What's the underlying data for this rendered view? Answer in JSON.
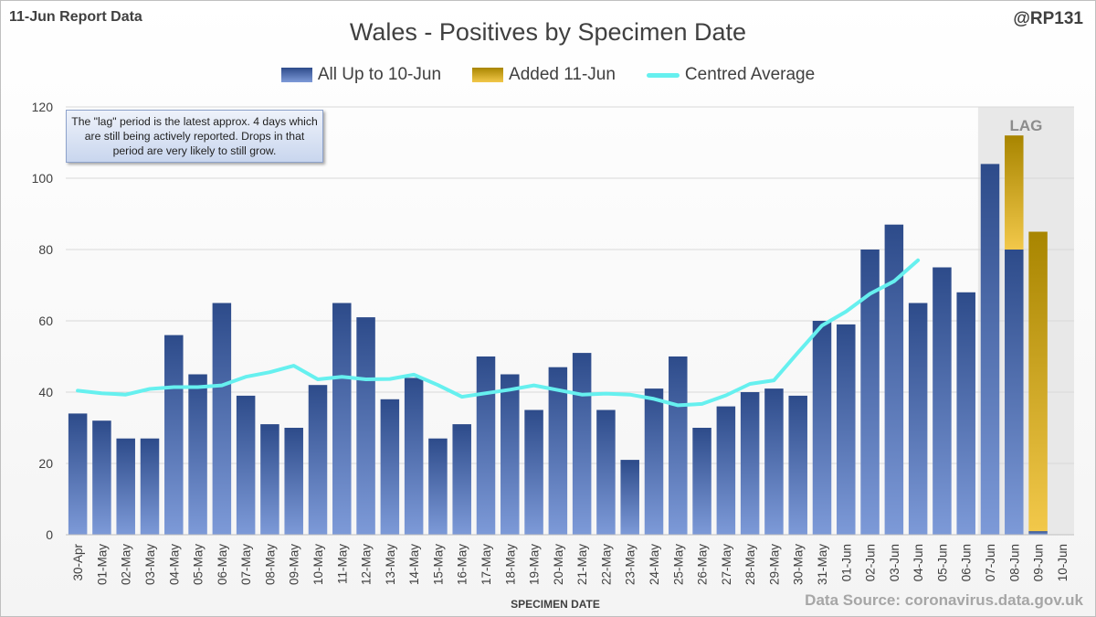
{
  "header": {
    "report_label": "11-Jun Report Data",
    "handle": "@RP131"
  },
  "footer": {
    "source": "Data Source: coronavirus.data.gov.uk"
  },
  "note": "The \"lag\" period is the latest approx. 4 days which are still being actively reported.  Drops in that period are very likely to still grow.",
  "colors": {
    "base_top": "#2d4b8a",
    "base_bottom": "#7d9ad8",
    "added_top": "#a88500",
    "added_bottom": "#f2c84a",
    "average_line": "#66f0ef",
    "lag_shade": "#e8e8e8"
  },
  "chart_data": {
    "type": "bar",
    "title": "Wales - Positives by Specimen Date",
    "xlabel": "SPECIMEN DATE",
    "ylabel": "",
    "ylim": [
      0,
      120
    ],
    "yticks": [
      0,
      20,
      40,
      60,
      80,
      100,
      120
    ],
    "grid": true,
    "legend_position": "top-center",
    "lag_label": "LAG",
    "lag_categories": [
      "07-Jun",
      "08-Jun",
      "09-Jun",
      "10-Jun"
    ],
    "categories": [
      "30-Apr",
      "01-May",
      "02-May",
      "03-May",
      "04-May",
      "05-May",
      "06-May",
      "07-May",
      "08-May",
      "09-May",
      "10-May",
      "11-May",
      "12-May",
      "13-May",
      "14-May",
      "15-May",
      "16-May",
      "17-May",
      "18-May",
      "19-May",
      "20-May",
      "21-May",
      "22-May",
      "23-May",
      "24-May",
      "25-May",
      "26-May",
      "27-May",
      "28-May",
      "29-May",
      "30-May",
      "31-May",
      "01-Jun",
      "02-Jun",
      "03-Jun",
      "04-Jun",
      "05-Jun",
      "06-Jun",
      "07-Jun",
      "08-Jun",
      "09-Jun",
      "10-Jun"
    ],
    "series": [
      {
        "name": "All Up to 10-Jun",
        "kind": "bar",
        "values": [
          34,
          32,
          27,
          27,
          56,
          45,
          65,
          39,
          31,
          30,
          42,
          65,
          61,
          38,
          44,
          27,
          31,
          50,
          45,
          35,
          47,
          51,
          35,
          21,
          41,
          50,
          30,
          36,
          40,
          41,
          39,
          60,
          59,
          80,
          87,
          65,
          75,
          68,
          104,
          80,
          1,
          0
        ]
      },
      {
        "name": "Added 11-Jun",
        "kind": "bar-stacked",
        "values": [
          0,
          0,
          0,
          0,
          0,
          0,
          0,
          0,
          0,
          0,
          0,
          0,
          0,
          0,
          0,
          0,
          0,
          0,
          0,
          0,
          0,
          0,
          0,
          0,
          0,
          0,
          0,
          0,
          0,
          0,
          0,
          0,
          0,
          0,
          0,
          0,
          0,
          0,
          0,
          32,
          84,
          0
        ]
      },
      {
        "name": "Centred Average",
        "kind": "line",
        "values": [
          40.4,
          39.7,
          39.3,
          40.9,
          41.4,
          41.4,
          41.9,
          44.3,
          45.6,
          47.4,
          43.6,
          44.3,
          43.6,
          43.7,
          44.9,
          42.0,
          38.7,
          39.7,
          40.7,
          41.9,
          40.6,
          39.3,
          39.6,
          39.3,
          38.1,
          36.3,
          36.7,
          39.1,
          42.3,
          43.3,
          51.1,
          58.7,
          62.6,
          67.6,
          71.1,
          77.0,
          null,
          null,
          null,
          null,
          null,
          null
        ]
      }
    ]
  }
}
